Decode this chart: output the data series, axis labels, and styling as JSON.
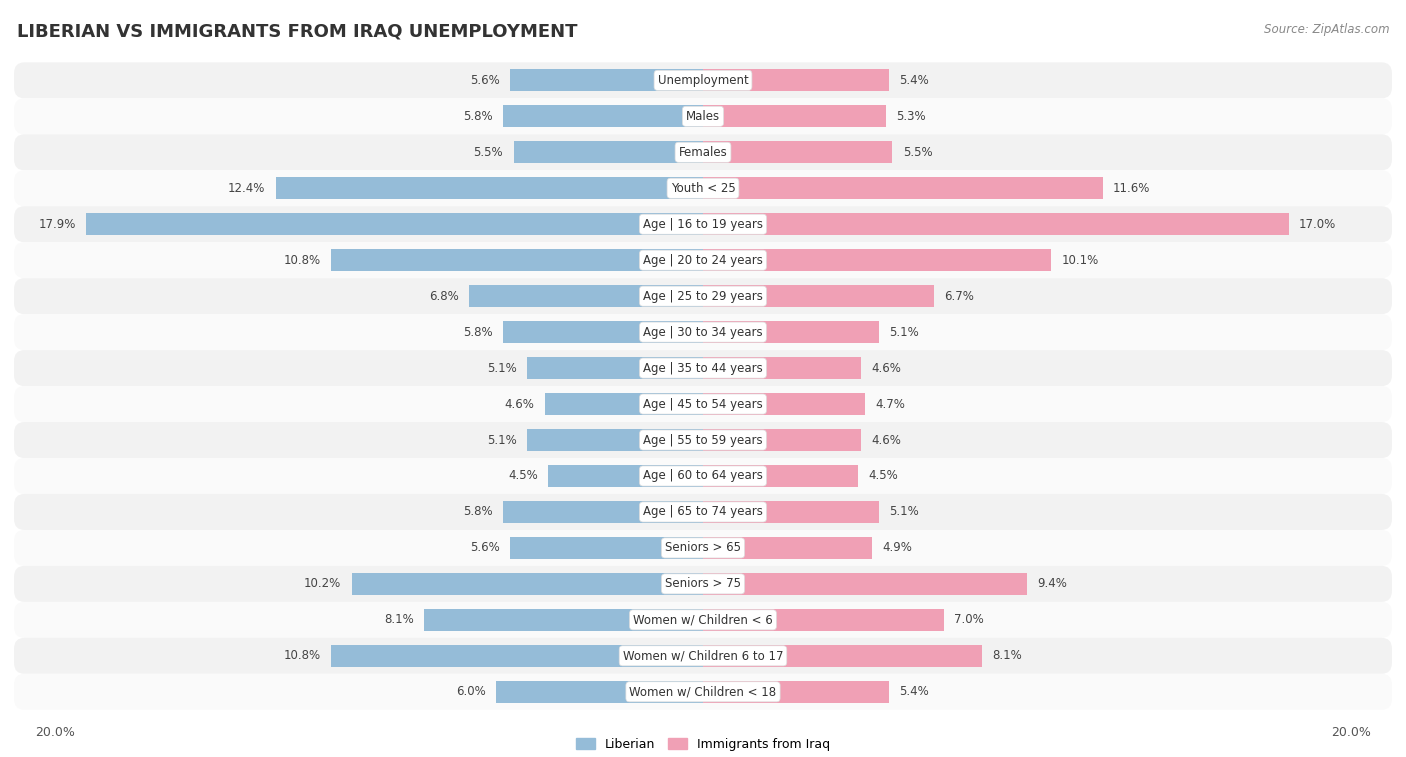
{
  "title": "LIBERIAN VS IMMIGRANTS FROM IRAQ UNEMPLOYMENT",
  "source": "Source: ZipAtlas.com",
  "categories": [
    "Unemployment",
    "Males",
    "Females",
    "Youth < 25",
    "Age | 16 to 19 years",
    "Age | 20 to 24 years",
    "Age | 25 to 29 years",
    "Age | 30 to 34 years",
    "Age | 35 to 44 years",
    "Age | 45 to 54 years",
    "Age | 55 to 59 years",
    "Age | 60 to 64 years",
    "Age | 65 to 74 years",
    "Seniors > 65",
    "Seniors > 75",
    "Women w/ Children < 6",
    "Women w/ Children 6 to 17",
    "Women w/ Children < 18"
  ],
  "liberian": [
    5.6,
    5.8,
    5.5,
    12.4,
    17.9,
    10.8,
    6.8,
    5.8,
    5.1,
    4.6,
    5.1,
    4.5,
    5.8,
    5.6,
    10.2,
    8.1,
    10.8,
    6.0
  ],
  "iraq": [
    5.4,
    5.3,
    5.5,
    11.6,
    17.0,
    10.1,
    6.7,
    5.1,
    4.6,
    4.7,
    4.6,
    4.5,
    5.1,
    4.9,
    9.4,
    7.0,
    8.1,
    5.4
  ],
  "liberian_color": "#95bcd8",
  "iraq_color": "#f0a0b5",
  "background_color": "#ffffff",
  "row_bg_even": "#f2f2f2",
  "row_bg_odd": "#fafafa",
  "max_val": 20.0,
  "label_fontsize": 8.5,
  "title_fontsize": 13,
  "legend_liberian": "Liberian",
  "legend_iraq": "Immigrants from Iraq"
}
